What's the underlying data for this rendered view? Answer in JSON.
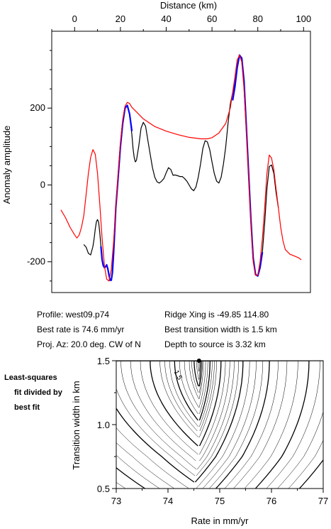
{
  "chart_data": [
    {
      "type": "line",
      "title": "",
      "xlabel": "Distance (km)",
      "ylabel": "Anomaly amplitude",
      "xlim": [
        -10,
        103
      ],
      "ylim": [
        -280,
        400
      ],
      "x_ticks": [
        0,
        20,
        40,
        60,
        80,
        100
      ],
      "y_ticks": [
        -200,
        0,
        200
      ],
      "series": [
        {
          "color": "#000000",
          "points": [
            [
              4,
              -155
            ],
            [
              5,
              -162
            ],
            [
              6,
              -178
            ],
            [
              7,
              -182
            ],
            [
              8,
              -160
            ],
            [
              8.5,
              -140
            ],
            [
              9,
              -115
            ],
            [
              9.5,
              -96
            ],
            [
              10,
              -90
            ],
            [
              10.5,
              -97
            ],
            [
              11,
              -125
            ],
            [
              11.5,
              -160
            ],
            [
              12,
              -195
            ],
            [
              12.5,
              -210
            ],
            [
              13,
              -215
            ],
            [
              13.5,
              -213
            ],
            [
              14,
              -208
            ],
            [
              14.5,
              -218
            ],
            [
              15,
              -235
            ],
            [
              15.5,
              -248
            ],
            [
              16,
              -248
            ],
            [
              16.5,
              -228
            ],
            [
              17,
              -180
            ],
            [
              17.5,
              -120
            ],
            [
              18,
              -60
            ],
            [
              19,
              20
            ],
            [
              20,
              100
            ],
            [
              21,
              160
            ],
            [
              22,
              200
            ],
            [
              23,
              207
            ],
            [
              24,
              185
            ],
            [
              25,
              130
            ],
            [
              25.5,
              95
            ],
            [
              26,
              72
            ],
            [
              26.5,
              60
            ],
            [
              27,
              64
            ],
            [
              28,
              100
            ],
            [
              29,
              148
            ],
            [
              30,
              163
            ],
            [
              31,
              153
            ],
            [
              32,
              115
            ],
            [
              33,
              80
            ],
            [
              34,
              45
            ],
            [
              35,
              20
            ],
            [
              36,
              8
            ],
            [
              37,
              5
            ],
            [
              38,
              10
            ],
            [
              39,
              17
            ],
            [
              40,
              32
            ],
            [
              41,
              45
            ],
            [
              42,
              40
            ],
            [
              43,
              25
            ],
            [
              44,
              26
            ],
            [
              45,
              24
            ],
            [
              46,
              22
            ],
            [
              47,
              22
            ],
            [
              48,
              17
            ],
            [
              49,
              10
            ],
            [
              50,
              0
            ],
            [
              51,
              -10
            ],
            [
              52,
              -15
            ],
            [
              53,
              -5
            ],
            [
              54,
              20
            ],
            [
              55,
              55
            ],
            [
              56,
              95
            ],
            [
              57,
              115
            ],
            [
              58,
              112
            ],
            [
              59,
              92
            ],
            [
              60,
              60
            ],
            [
              61,
              30
            ],
            [
              62,
              10
            ],
            [
              63,
              5
            ],
            [
              64,
              20
            ],
            [
              65,
              55
            ],
            [
              66,
              100
            ],
            [
              67,
              160
            ],
            [
              68,
              210
            ],
            [
              69,
              240
            ],
            [
              70,
              265
            ],
            [
              71,
              305
            ],
            [
              72,
              338
            ],
            [
              73,
              330
            ],
            [
              74,
              270
            ],
            [
              75,
              150
            ],
            [
              76,
              30
            ],
            [
              77,
              -90
            ],
            [
              78,
              -190
            ],
            [
              79,
              -233
            ],
            [
              80,
              -237
            ],
            [
              81,
              -215
            ],
            [
              82,
              -175
            ],
            [
              83,
              -100
            ],
            [
              84,
              -10
            ],
            [
              85,
              48
            ],
            [
              86,
              52
            ],
            [
              87,
              30
            ],
            [
              88,
              -20
            ],
            [
              89,
              -60
            ]
          ]
        },
        {
          "color": "#0000ff",
          "points": [
            [
              11.5,
              -160
            ],
            [
              12,
              -195
            ],
            [
              12.5,
              -210
            ],
            [
              13,
              -215
            ],
            [
              13.5,
              -213
            ],
            [
              14,
              -208
            ],
            [
              14.5,
              -218
            ],
            [
              15,
              -235
            ],
            [
              15.5,
              -248
            ],
            [
              16,
              -248
            ],
            [
              16.5,
              -228
            ],
            [
              17,
              -180
            ],
            [
              17.5,
              -120
            ],
            [
              18,
              -60
            ],
            [
              19,
              20
            ],
            [
              20,
              100
            ],
            [
              21,
              160
            ],
            [
              22,
              200
            ],
            [
              23,
              207
            ],
            [
              24,
              185
            ],
            [
              25,
              140
            ]
          ]
        },
        {
          "color": "#0000ff",
          "points": [
            [
              69,
              220
            ],
            [
              70,
              255
            ],
            [
              71,
              305
            ],
            [
              72,
              338
            ],
            [
              73,
              330
            ],
            [
              74,
              270
            ],
            [
              75,
              150
            ],
            [
              76,
              30
            ],
            [
              77,
              -90
            ],
            [
              78,
              -190
            ],
            [
              79,
              -233
            ],
            [
              80,
              -237
            ],
            [
              81,
              -215
            ],
            [
              82,
              -175
            ]
          ]
        },
        {
          "color": "#ff0000",
          "points": [
            [
              -6,
              -65
            ],
            [
              -4,
              -85
            ],
            [
              -2,
              -110
            ],
            [
              0,
              -130
            ],
            [
              1,
              -138
            ],
            [
              2,
              -130
            ],
            [
              3,
              -110
            ],
            [
              4,
              -80
            ],
            [
              5,
              -25
            ],
            [
              6,
              30
            ],
            [
              7,
              72
            ],
            [
              8,
              92
            ],
            [
              9,
              80
            ],
            [
              10,
              30
            ],
            [
              11,
              -50
            ],
            [
              12,
              -140
            ],
            [
              13,
              -210
            ],
            [
              14,
              -245
            ],
            [
              15,
              -250
            ],
            [
              16,
              -220
            ],
            [
              17,
              -150
            ],
            [
              18,
              -60
            ],
            [
              19,
              30
            ],
            [
              20,
              110
            ],
            [
              21,
              170
            ],
            [
              22,
              205
            ],
            [
              23,
              215
            ],
            [
              24,
              212
            ],
            [
              25,
              202
            ],
            [
              27,
              190
            ],
            [
              30,
              172
            ],
            [
              35,
              152
            ],
            [
              40,
              140
            ],
            [
              45,
              131
            ],
            [
              50,
              124
            ],
            [
              55,
              120
            ],
            [
              58,
              120
            ],
            [
              60,
              123
            ],
            [
              63,
              135
            ],
            [
              66,
              160
            ],
            [
              68,
              200
            ],
            [
              70,
              280
            ],
            [
              71,
              325
            ],
            [
              72,
              338
            ],
            [
              73,
              320
            ],
            [
              74,
              250
            ],
            [
              75,
              140
            ],
            [
              76,
              20
            ],
            [
              77,
              -100
            ],
            [
              78,
              -200
            ],
            [
              79,
              -235
            ],
            [
              80,
              -235
            ],
            [
              81,
              -200
            ],
            [
              82,
              -140
            ],
            [
              83,
              -60
            ],
            [
              84,
              30
            ],
            [
              85,
              78
            ],
            [
              86,
              70
            ],
            [
              87,
              40
            ],
            [
              88,
              -10
            ],
            [
              89,
              -60
            ],
            [
              90,
              -110
            ],
            [
              91,
              -145
            ],
            [
              92,
              -168
            ],
            [
              94,
              -180
            ],
            [
              96,
              -185
            ],
            [
              98,
              -190
            ],
            [
              99,
              -195
            ]
          ]
        }
      ]
    },
    {
      "type": "contour",
      "title": "",
      "xlabel": "Rate in mm/yr",
      "ylabel": "Transition width in km",
      "xlim": [
        73,
        77
      ],
      "ylim": [
        0.5,
        1.5
      ],
      "x_ticks": [
        73,
        74,
        75,
        76,
        77
      ],
      "y_ticks": [
        0.5,
        1.0,
        1.5
      ],
      "x_tick_labels": [
        "73",
        "74",
        "75",
        "76",
        "77"
      ],
      "y_tick_labels": [
        "0.5",
        "1.0",
        "1.5"
      ],
      "best_fit": {
        "rate": 74.6,
        "width": 1.5
      },
      "contour_label": "1.5",
      "min_rate_at_width": {
        "0.5": 74.5,
        "0.75": 74.6,
        "1.0": 74.6,
        "1.25": 74.6,
        "1.5": 74.6
      },
      "left_slope": 0.9,
      "right_slope": 2.0,
      "curvature": 0.55,
      "levels": [
        1.02,
        1.05,
        1.1,
        1.15,
        1.2,
        1.3,
        1.4,
        1.5,
        1.6,
        1.7,
        1.8,
        2.0,
        2.2,
        2.4,
        2.6,
        2.8,
        3.0,
        3.3,
        3.6,
        3.9,
        4.2,
        4.6,
        5.0,
        5.5,
        6.0,
        6.5,
        7.0,
        7.5,
        8.0
      ],
      "bold_levels": [
        1.1,
        1.5,
        2.0,
        3.0,
        4.2,
        6.0,
        8.0
      ]
    }
  ],
  "info": {
    "profile": "Profile: west09.p74",
    "best_rate": "Best rate is 74.6 mm/yr",
    "proj_az": "Proj. Az: 20.0 deg. CW of N",
    "ridge_xing": "Ridge Xing is -49.85 114.80",
    "best_width": "Best transition width is 1.5 km",
    "depth": "Depth to source is   3.32 km"
  },
  "side_label": [
    "Least-squares",
    "fit divided by",
    "best fit"
  ]
}
